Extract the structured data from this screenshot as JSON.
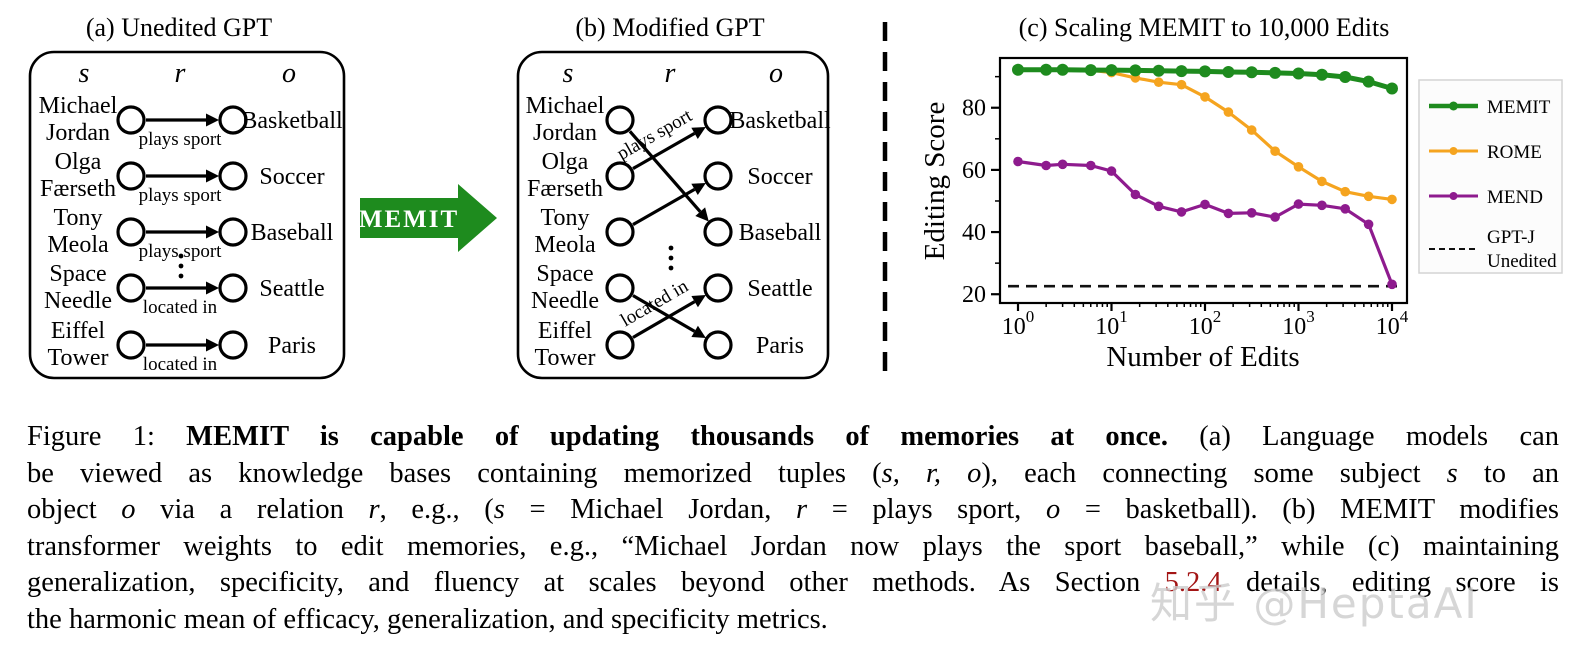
{
  "panel_a": {
    "title": "(a) Unedited GPT",
    "headers": [
      "s",
      "r",
      "o"
    ],
    "rows": [
      {
        "subject": [
          "Michael",
          "Jordan"
        ],
        "relation": "plays sport",
        "object": "Basketball"
      },
      {
        "subject": [
          "Olga",
          "Færseth"
        ],
        "relation": "plays sport",
        "object": "Soccer"
      },
      {
        "subject": [
          "Tony",
          "Meola"
        ],
        "relation": "plays sport",
        "object": "Baseball"
      },
      {
        "subject": [
          "Space",
          "Needle"
        ],
        "relation": "located in",
        "object": "Seattle"
      },
      {
        "subject": [
          "Eiffel",
          "Tower"
        ],
        "relation": "located in",
        "object": "Paris"
      }
    ],
    "ellipsis_between_rows": [
      2,
      3
    ]
  },
  "memit_arrow": {
    "label": "MEMIT",
    "color": "#1E8B1E"
  },
  "panel_b": {
    "title": "(b) Modified GPT",
    "headers": [
      "s",
      "r",
      "o"
    ],
    "subjects": [
      [
        "Michael",
        "Jordan"
      ],
      [
        "Olga",
        "Færseth"
      ],
      [
        "Tony",
        "Meola"
      ],
      [
        "Space",
        "Needle"
      ],
      [
        "Eiffel",
        "Tower"
      ]
    ],
    "objects": [
      "Basketball",
      "Soccer",
      "Baseball",
      "Seattle",
      "Paris"
    ],
    "edges": [
      {
        "from": 0,
        "to": 2,
        "label": ""
      },
      {
        "from": 1,
        "to": 0,
        "label": "plays sport"
      },
      {
        "from": 2,
        "to": 1,
        "label": ""
      },
      {
        "from": 3,
        "to": 4,
        "label": ""
      },
      {
        "from": 4,
        "to": 3,
        "label": "located in"
      }
    ],
    "ellipsis_between_rows": [
      2,
      3
    ]
  },
  "chart_data": {
    "type": "line",
    "title": "(c) Scaling MEMIT to 10,000 Edits",
    "xlabel": "Number of Edits",
    "ylabel": "Editing Score",
    "x_scale": "log",
    "xlim": [
      1,
      10000
    ],
    "ylim": [
      17.5,
      96
    ],
    "y_ticks": [
      20,
      40,
      60,
      80
    ],
    "y_minor_ticks": [
      30,
      50,
      70,
      90
    ],
    "x_ticks": [
      "10^0",
      "10^1",
      "10^2",
      "10^3",
      "10^4"
    ],
    "grid": false,
    "legend_position": "right outside",
    "x": [
      1,
      2,
      3,
      6,
      10,
      18,
      32,
      56,
      100,
      178,
      316,
      562,
      1000,
      1778,
      3162,
      5623,
      10000
    ],
    "series": [
      {
        "name": "MEMIT",
        "color": "#1E8B1E",
        "values": [
          92.2,
          92.2,
          92.2,
          92.1,
          92.1,
          92.0,
          91.9,
          91.8,
          91.7,
          91.5,
          91.4,
          91.2,
          91.0,
          90.6,
          89.9,
          88.4,
          86.2
        ]
      },
      {
        "name": "ROME",
        "color": "#F5A41F",
        "values": [
          92.2,
          92.2,
          92.2,
          92.1,
          91.3,
          89.6,
          88.2,
          87.4,
          83.5,
          78.6,
          72.8,
          66.0,
          61.0,
          56.3,
          53.0,
          51.5,
          50.5
        ]
      },
      {
        "name": "MEND",
        "color": "#8E1B8E",
        "values": [
          62.7,
          61.4,
          61.8,
          61.4,
          59.6,
          52.1,
          48.3,
          46.5,
          48.9,
          46.0,
          46.2,
          44.8,
          49.0,
          48.6,
          47.5,
          42.5,
          23.2
        ]
      }
    ],
    "baseline": {
      "name": "GPT-J Unedited",
      "label_lines": [
        "GPT-J",
        "Unedited"
      ],
      "value": 22.6,
      "style": "dashed",
      "color": "#111111"
    }
  },
  "caption": {
    "link_color": "#a31515",
    "lines": [
      [
        {
          "t": "Figure 1:  "
        },
        {
          "t": "MEMIT is capable of updating thousands of memories at once.",
          "b": true
        },
        {
          "t": "  (a) Language models can"
        }
      ],
      [
        {
          "t": "be viewed as knowledge bases containing memorized tuples ("
        },
        {
          "t": "s, r, o",
          "i": true
        },
        {
          "t": "), each connecting some subject "
        },
        {
          "t": "s",
          "i": true
        },
        {
          "t": " to an"
        }
      ],
      [
        {
          "t": "object "
        },
        {
          "t": "o",
          "i": true
        },
        {
          "t": " via a relation "
        },
        {
          "t": "r",
          "i": true
        },
        {
          "t": ", e.g., ("
        },
        {
          "t": "s",
          "i": true
        },
        {
          "t": " = Michael Jordan, "
        },
        {
          "t": "r",
          "i": true
        },
        {
          "t": " = plays sport, "
        },
        {
          "t": "o",
          "i": true
        },
        {
          "t": " = basketball).  (b) MEMIT modifies"
        }
      ],
      [
        {
          "t": "transformer weights to edit memories, e.g., “Michael Jordan now plays the sport baseball,” while (c) maintaining"
        }
      ],
      [
        {
          "t": "generalization, specificity, and fluency at scales beyond other methods.  As Section "
        },
        {
          "t": "5.2.4",
          "red": true
        },
        {
          "t": " details, editing score is"
        }
      ],
      [
        {
          "t": "the harmonic mean of efficacy, generalization, and specificity metrics."
        }
      ]
    ]
  },
  "watermark": {
    "text": "知乎 @HeptaAI",
    "color": "#cccccc"
  }
}
